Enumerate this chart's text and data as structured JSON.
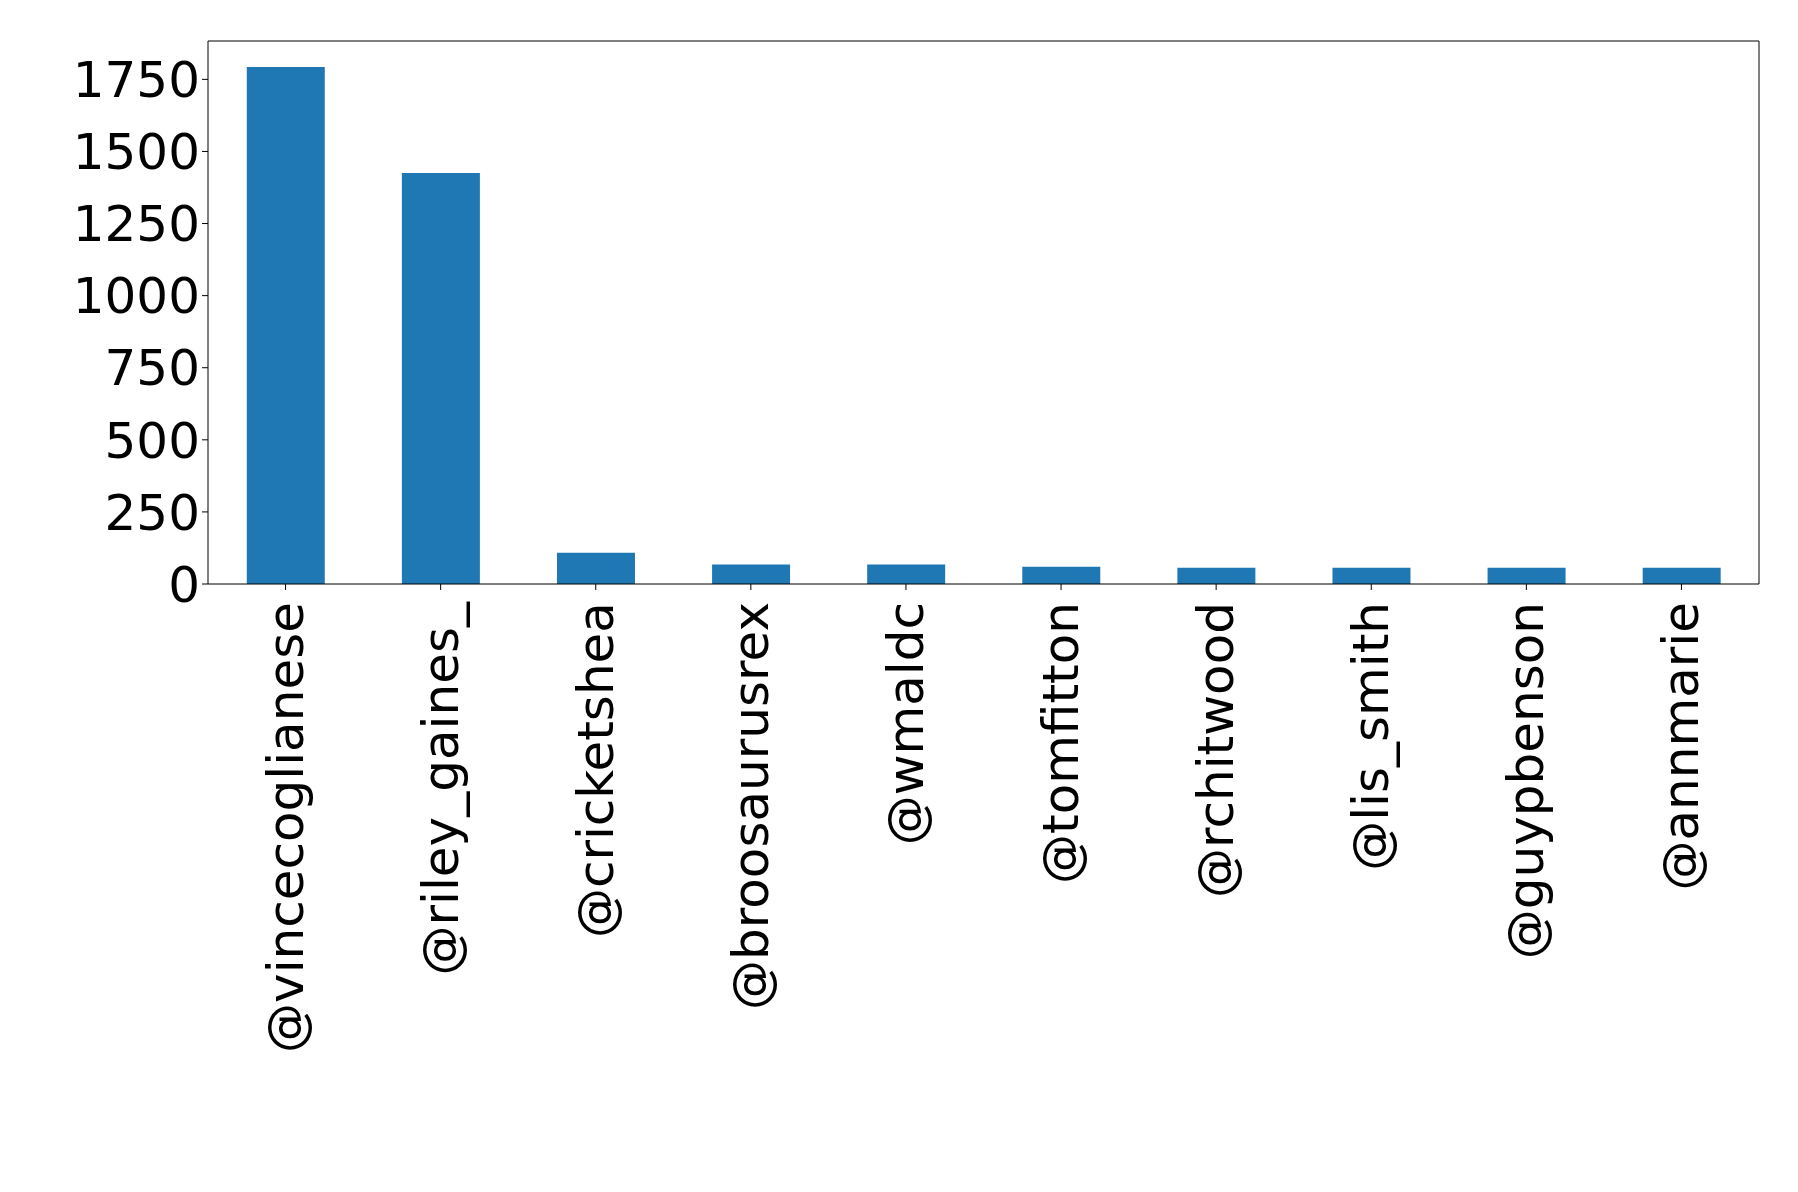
{
  "chart_data": {
    "type": "bar",
    "categories": [
      "@vincecoglianese",
      "@riley_gaines_",
      "@cricketshea",
      "@broosaurusrex",
      "@wmaldc",
      "@tomfitton",
      "@rchitwood",
      "@lis_smith",
      "@guypbenson",
      "@annmarie"
    ],
    "values": [
      1793,
      1425,
      108,
      68,
      68,
      60,
      56,
      56,
      56,
      56
    ],
    "color": "#1f77b4",
    "ylim": [
      0,
      1883
    ],
    "yticks": [
      0,
      250,
      500,
      750,
      1000,
      1250,
      1500,
      1750
    ],
    "grid": false,
    "legend": false
  }
}
